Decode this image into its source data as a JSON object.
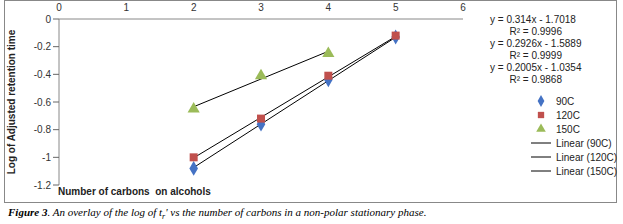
{
  "chart_data": {
    "type": "scatter",
    "x_label": "Number of carbons  on alcohols",
    "y_label": "Log of Adjusted retention time",
    "xlim": [
      0,
      6
    ],
    "xticks": [
      0,
      1,
      2,
      3,
      4,
      5,
      6
    ],
    "ylim": [
      -1.2,
      0
    ],
    "yticks": [
      -1.2,
      -1,
      -0.8,
      -0.6,
      -0.4,
      -0.2,
      0
    ],
    "grid": false,
    "legend": "right",
    "series": [
      {
        "name": "90C",
        "color": "#4472c4",
        "marker": "diamond",
        "x": [
          2,
          3,
          4,
          5
        ],
        "values": [
          -1.08,
          -0.76,
          -0.44,
          -0.13
        ],
        "trendline": {
          "name": "Linear (90C)",
          "color": "#000000",
          "line_style": "solid",
          "slope": 0.314,
          "intercept": -1.7018,
          "equation": "y = 0.314x - 1.7018",
          "r2_label": "R² = 0.9996"
        }
      },
      {
        "name": "120C",
        "color": "#c0504d",
        "marker": "square",
        "x": [
          2,
          3,
          4,
          5
        ],
        "values": [
          -1.0,
          -0.72,
          -0.41,
          -0.12
        ],
        "trendline": {
          "name": "Linear (120C)",
          "color": "#000000",
          "line_style": "solid",
          "slope": 0.2926,
          "intercept": -1.5889,
          "equation": "y = 0.2926x - 1.5889",
          "r2_label": "R² = 0.9999"
        }
      },
      {
        "name": "150C",
        "color": "#9bbb59",
        "marker": "triangle",
        "x": [
          2,
          3,
          4
        ],
        "values": [
          -0.65,
          -0.41,
          -0.25
        ],
        "trendline": {
          "name": "Linear (150C)",
          "color": "#000000",
          "line_style": "solid",
          "slope": 0.2005,
          "intercept": -1.0354,
          "equation": "y = 0.2005x - 1.0354",
          "r2_label": "R² = 0.9868"
        }
      }
    ],
    "caption": {
      "label": "Figure 3",
      "text": [
        ". An overlay of the log of t",
        "r",
        "' vs the number of carbons in a non-polar stationary phase."
      ]
    }
  }
}
